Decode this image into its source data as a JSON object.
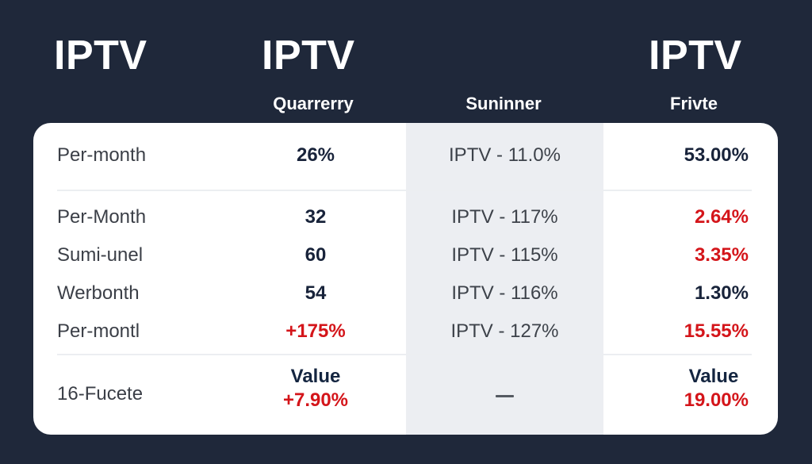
{
  "header": {
    "brands": [
      "IPTV",
      "IPTV",
      "IPTV"
    ],
    "columns": [
      "Quarrerry",
      "Suninner",
      "Frivte"
    ]
  },
  "table": {
    "rows": [
      {
        "label": "Per-month",
        "col1": "26%",
        "col2": "IPTV - 11.0%",
        "col3": "53.00%",
        "col1_color": "#18233a",
        "col3_color": "#18233a"
      },
      {
        "label": "Per-Month",
        "col1": "32",
        "col2": "IPTV - 117%",
        "col3": "2.64%",
        "col1_color": "#18233a",
        "col3_color": "#d4151a"
      },
      {
        "label": "Sumi-unel",
        "col1": "60",
        "col2": "IPTV - 115%",
        "col3": "3.35%",
        "col1_color": "#18233a",
        "col3_color": "#d4151a"
      },
      {
        "label": "Werbonth",
        "col1": "54",
        "col2": "IPTV - 116%",
        "col3": "1.30%",
        "col1_color": "#18233a",
        "col3_color": "#18233a"
      },
      {
        "label": "Per-montl",
        "col1": "+175%",
        "col2": "IPTV - 127%",
        "col3": "15.55%",
        "col1_color": "#d4151a",
        "col3_color": "#d4151a"
      }
    ],
    "footer": {
      "label": "16-Fucete",
      "col1_caption": "Value",
      "col1_value": "+7.90%",
      "col2_value": "—",
      "col3_caption": "Value",
      "col3_value": "19.00%"
    }
  },
  "colors": {
    "background": "#1f283a",
    "card": "#ffffff",
    "shaded_column": "#eceef2",
    "negative": "#d4151a",
    "dark_text": "#18233a"
  }
}
